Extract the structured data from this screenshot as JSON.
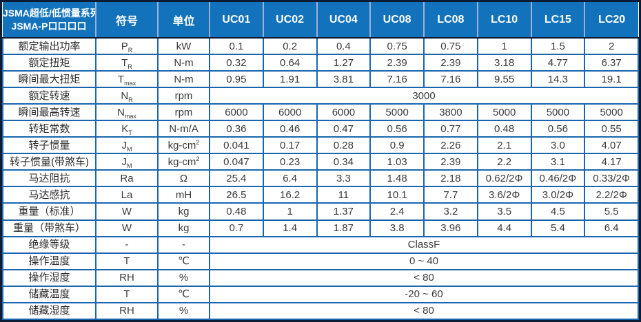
{
  "table": {
    "title_line1": "JSMA超低/低惯量系列",
    "title_line2": "JSMA-P口口口口",
    "col_symbol": "符号",
    "col_unit": "单位",
    "models": [
      "UC01",
      "UC02",
      "UC04",
      "UC08",
      "LC08",
      "LC10",
      "LC15",
      "LC20"
    ],
    "rows": [
      {
        "label": "额定输出功率",
        "sym": "P",
        "sub": "R",
        "unit": "kW",
        "values": [
          "0.1",
          "0.2",
          "0.4",
          "0.75",
          "0.75",
          "1",
          "1.5",
          "2"
        ]
      },
      {
        "label": "额定扭矩",
        "sym": "T",
        "sub": "R",
        "unit": "N-m",
        "values": [
          "0.32",
          "0.64",
          "1.27",
          "2.39",
          "2.39",
          "3.18",
          "4.77",
          "6.37"
        ]
      },
      {
        "label": "瞬间最大扭矩",
        "sym": "T",
        "sub": "max",
        "unit": "N-m",
        "values": [
          "0.95",
          "1.91",
          "3.81",
          "7.16",
          "7.16",
          "9.55",
          "14.3",
          "19.1"
        ]
      },
      {
        "label": "额定转速",
        "sym": "N",
        "sub": "R",
        "unit": "rpm",
        "merged": "3000"
      },
      {
        "label": "瞬间最高转速",
        "sym": "N",
        "sub": "max",
        "unit": "rpm",
        "values": [
          "6000",
          "6000",
          "6000",
          "5000",
          "3800",
          "5000",
          "5000",
          "5000"
        ]
      },
      {
        "label": "转矩常数",
        "sym": "K",
        "sub": "T",
        "unit": "N-m/A",
        "values": [
          "0.36",
          "0.46",
          "0.47",
          "0.56",
          "0.77",
          "0.48",
          "0.56",
          "0.55"
        ]
      },
      {
        "label": "转子惯量",
        "sym": "J",
        "sub": "M",
        "unit": "kg-cm",
        "unit_sup": "2",
        "values": [
          "0.041",
          "0.17",
          "0.28",
          "0.9",
          "2.26",
          "2.1",
          "3.0",
          "4.07"
        ]
      },
      {
        "label": "转子惯量(带煞车)",
        "sym": "J",
        "sub": "M",
        "unit": "kg-cm",
        "unit_sup": "2",
        "values": [
          "0.047",
          "0.23",
          "0.34",
          "1.03",
          "2.39",
          "2.2",
          "3.1",
          "4.17"
        ]
      },
      {
        "label": "马达阻抗",
        "sym": "Ra",
        "unit": "Ω",
        "values": [
          "25.4",
          "6.4",
          "3.3",
          "1.48",
          "2.18",
          "0.62/2Φ",
          "0.46/2Φ",
          "0.33/2Φ"
        ]
      },
      {
        "label": "马达感抗",
        "sym": "La",
        "unit": "mH",
        "values": [
          "26.5",
          "16.2",
          "11",
          "10.1",
          "7.7",
          "3.6/2Φ",
          "3.0/2Φ",
          "2.2/2Φ"
        ]
      },
      {
        "label": "重量（标准）",
        "sym": "W",
        "unit": "kg",
        "values": [
          "0.48",
          "1",
          "1.37",
          "2.4",
          "3.2",
          "3.5",
          "4.5",
          "5.5"
        ]
      },
      {
        "label": "重量（带煞车）",
        "sym": "W",
        "unit": "kg",
        "values": [
          "0.7",
          "1.4",
          "1.87",
          "3.8",
          "3.96",
          "4.4",
          "5.4",
          "6.4"
        ]
      },
      {
        "label": "绝缘等级",
        "sym": "-",
        "unit": "-",
        "merged": "ClassF"
      },
      {
        "label": "操作温度",
        "sym": "T",
        "unit": "℃",
        "merged": "0 ~ 40"
      },
      {
        "label": "操作湿度",
        "sym": "RH",
        "unit": "%",
        "merged": "< 80"
      },
      {
        "label": "储藏温度",
        "sym": "T",
        "unit": "℃",
        "merged": "-20 ~ 60"
      },
      {
        "label": "储藏湿度",
        "sym": "RH",
        "unit": "%",
        "merged": "< 80"
      }
    ],
    "colors": {
      "header_bg": "#1272bc",
      "header_text": "#ffffff",
      "header_divider": "#9db0d8",
      "grid_border": "#1966ae",
      "outer_border": "#0c1c36",
      "body_text": "#3a3a3a"
    }
  }
}
